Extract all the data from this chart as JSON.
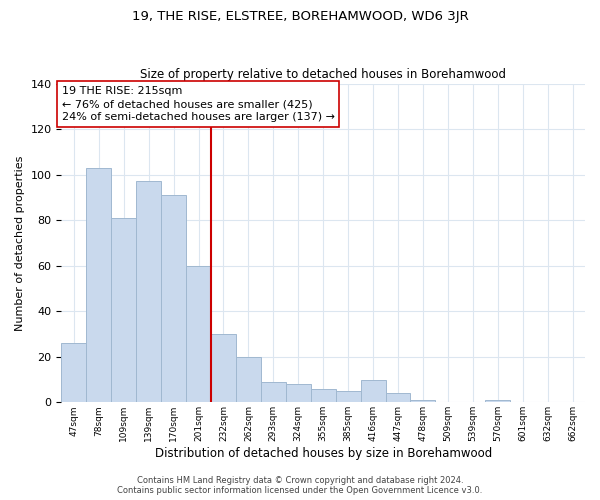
{
  "title": "19, THE RISE, ELSTREE, BOREHAMWOOD, WD6 3JR",
  "subtitle": "Size of property relative to detached houses in Borehamwood",
  "xlabel": "Distribution of detached houses by size in Borehamwood",
  "ylabel": "Number of detached properties",
  "bar_labels": [
    "47sqm",
    "78sqm",
    "109sqm",
    "139sqm",
    "170sqm",
    "201sqm",
    "232sqm",
    "262sqm",
    "293sqm",
    "324sqm",
    "355sqm",
    "385sqm",
    "416sqm",
    "447sqm",
    "478sqm",
    "509sqm",
    "539sqm",
    "570sqm",
    "601sqm",
    "632sqm",
    "662sqm"
  ],
  "bar_values": [
    26,
    103,
    81,
    97,
    91,
    60,
    30,
    20,
    9,
    8,
    6,
    5,
    10,
    4,
    1,
    0,
    0,
    1,
    0,
    0,
    0
  ],
  "bar_color": "#c9d9ed",
  "bar_edge_color": "#a0b8d0",
  "reference_line_color": "#cc0000",
  "annotation_text": "19 THE RISE: 215sqm\n← 76% of detached houses are smaller (425)\n24% of semi-detached houses are larger (137) →",
  "annotation_box_color": "#ffffff",
  "annotation_box_edge": "#cc0000",
  "ylim": [
    0,
    140
  ],
  "yticks": [
    0,
    20,
    40,
    60,
    80,
    100,
    120,
    140
  ],
  "footer_line1": "Contains HM Land Registry data © Crown copyright and database right 2024.",
  "footer_line2": "Contains public sector information licensed under the Open Government Licence v3.0.",
  "bg_color": "#ffffff",
  "grid_color": "#dce6f0",
  "ref_bar_index": 6
}
